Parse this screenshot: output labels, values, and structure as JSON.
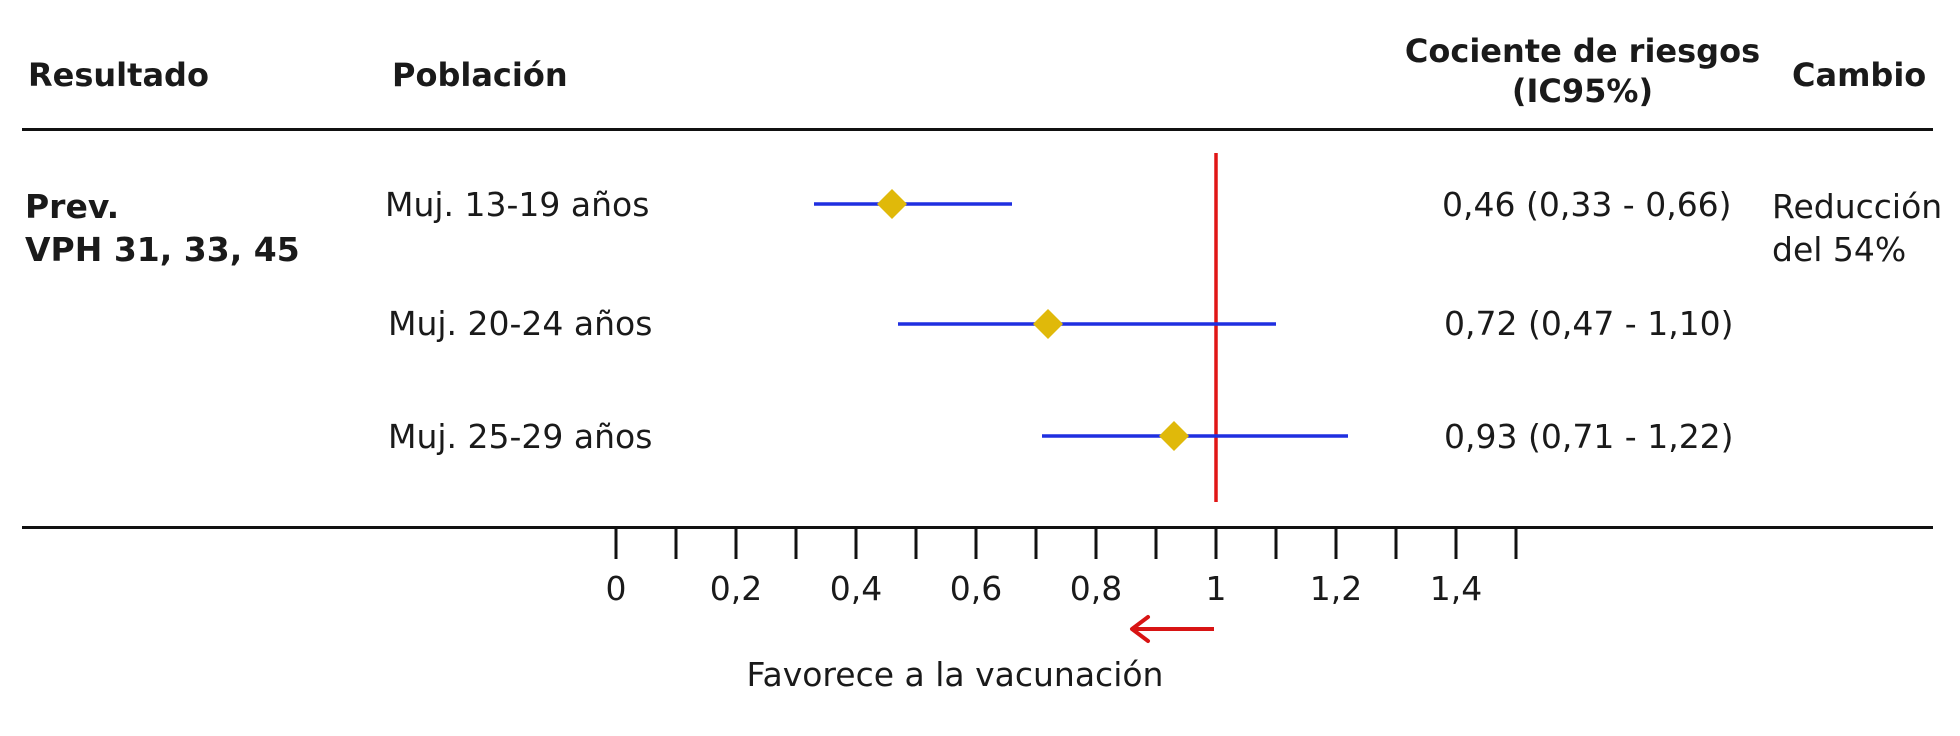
{
  "headers": {
    "outcome": "Resultado",
    "population": "Población",
    "ratio_line1": "Cociente de riesgos",
    "ratio_line2": "(IC95%)",
    "change": "Cambio"
  },
  "outcome": {
    "line1": "Prev.",
    "line2": "VPH 31, 33, 45"
  },
  "rows": [
    {
      "population": "Muj. 13-19 años",
      "ratio_text": "0,46 (0,33 - 0,66)",
      "change_line1": "Reducción",
      "change_line2": "del 54%"
    },
    {
      "population": "Muj. 20-24 años",
      "ratio_text": "0,72 (0,47 - 1,10)",
      "change_line1": "",
      "change_line2": ""
    },
    {
      "population": "Muj. 25-29 años",
      "ratio_text": "0,93 (0,71 - 1,22)",
      "change_line1": "",
      "change_line2": ""
    }
  ],
  "chart_data": {
    "type": "scatter",
    "subtype": "forest-plot",
    "categories": [
      "Muj. 13-19 años",
      "Muj. 20-24 años",
      "Muj. 25-29 años"
    ],
    "series": [
      {
        "estimates": [
          0.46,
          0.72,
          0.93
        ],
        "ci_lower": [
          0.33,
          0.47,
          0.71
        ],
        "ci_upper": [
          0.66,
          1.1,
          1.22
        ],
        "values": [
          {
            "category": "Muj. 13-19 años",
            "estimate": 0.46,
            "ci_lower": 0.33,
            "ci_upper": 0.66
          },
          {
            "category": "Muj. 20-24 años",
            "estimate": 0.72,
            "ci_lower": 0.47,
            "ci_upper": 1.1
          },
          {
            "category": "Muj. 25-29 años",
            "estimate": 0.93,
            "ci_lower": 0.71,
            "ci_upper": 1.22
          }
        ]
      }
    ],
    "reference_line": 1,
    "xlim": [
      0,
      1.5
    ],
    "major_ticks": [
      0,
      0.2,
      0.4,
      0.6,
      0.8,
      1,
      1.2,
      1.4
    ],
    "minor_ticks": [
      0.1,
      0.3,
      0.5,
      0.7,
      0.9,
      1.1,
      1.3,
      1.5
    ],
    "tick_labels": [
      "0",
      "0,2",
      "0,4",
      "0,6",
      "0,8",
      "1",
      "1,2",
      "1,4"
    ],
    "arrow_label": "Favorece a la vacunación",
    "arrow_direction": "left",
    "colors": {
      "ci_line": "#1f2fe0",
      "estimate_marker": "#e0b90a",
      "reference_line": "#e01616",
      "arrow": "#d81414",
      "axis": "#111111"
    }
  }
}
